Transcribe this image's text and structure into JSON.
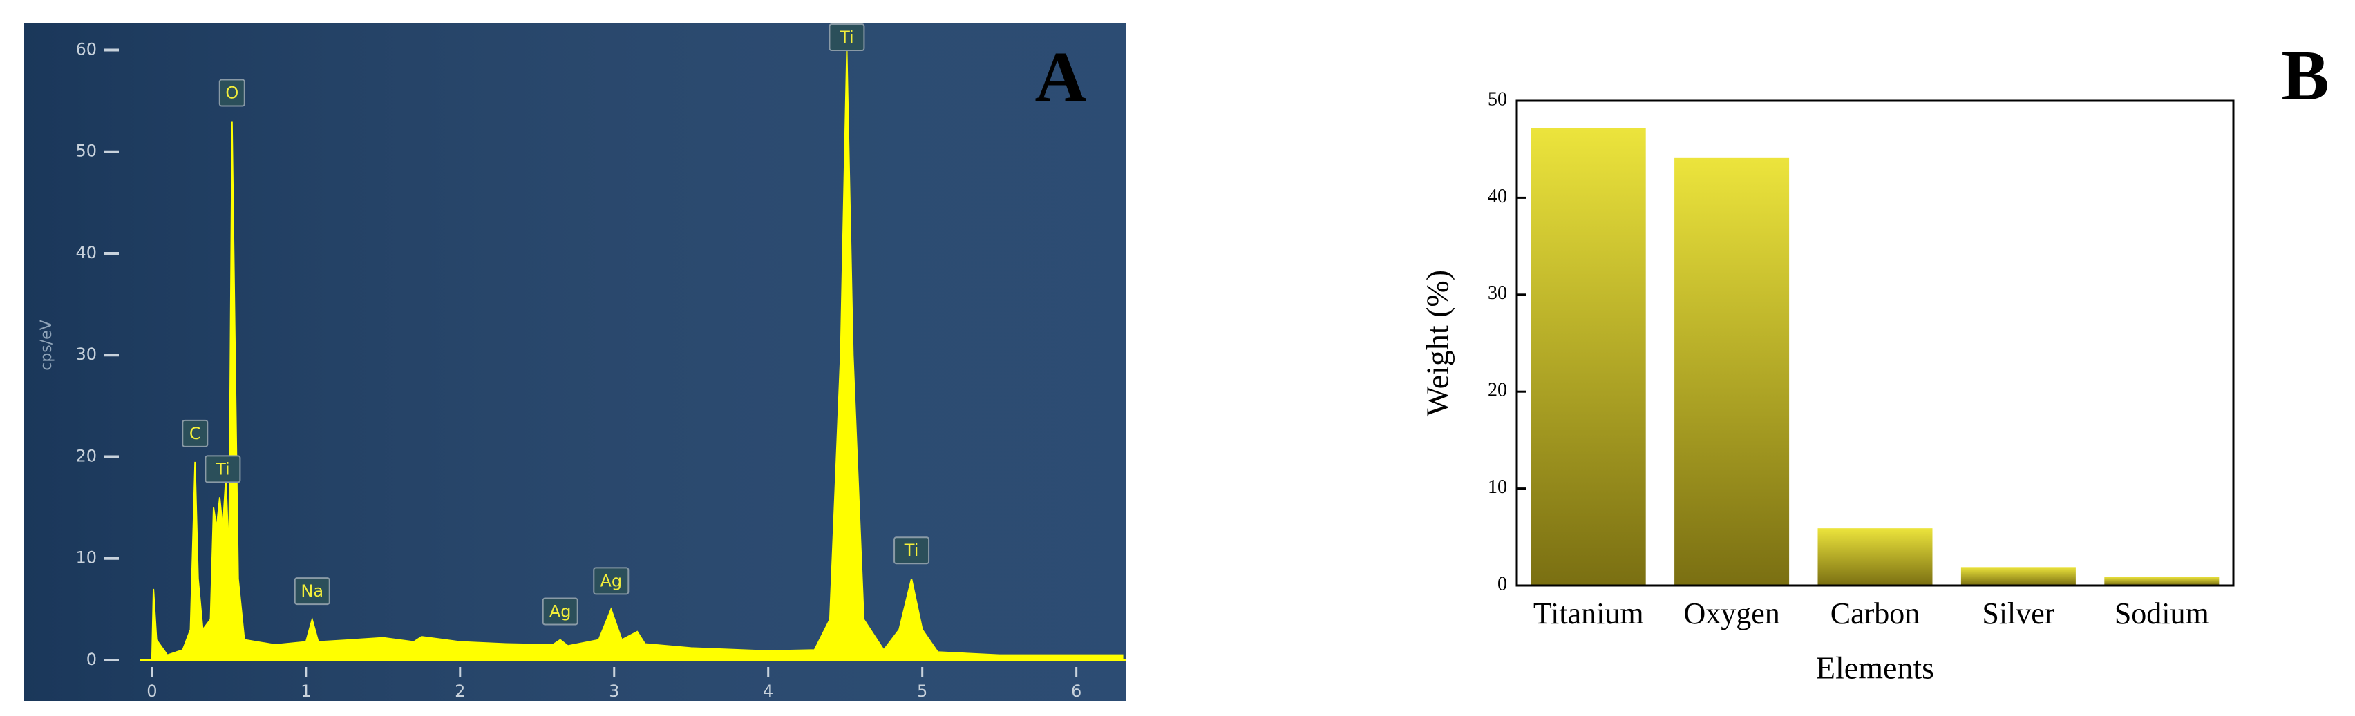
{
  "chart_data": [
    {
      "type": "area",
      "panel": "A",
      "y_label": "cps/eV",
      "color": "#ffff00",
      "background": "#1f416a",
      "x": [
        0,
        0.01,
        0.03,
        0.1,
        0.2,
        0.25,
        0.28,
        0.3,
        0.33,
        0.38,
        0.4,
        0.42,
        0.44,
        0.46,
        0.48,
        0.5,
        0.52,
        0.54,
        0.56,
        0.6,
        0.8,
        1.0,
        1.04,
        1.08,
        1.3,
        1.5,
        1.7,
        1.75,
        2.0,
        2.3,
        2.6,
        2.65,
        2.7,
        2.9,
        2.98,
        3.05,
        3.15,
        3.2,
        3.5,
        4.0,
        4.3,
        4.4,
        4.47,
        4.51,
        4.55,
        4.62,
        4.75,
        4.85,
        4.93,
        5.0,
        5.1,
        5.5,
        6.3
      ],
      "values": [
        0,
        7,
        2,
        0.5,
        1,
        3,
        19.5,
        8,
        3,
        4,
        15,
        13,
        16,
        13,
        18,
        10,
        53,
        30,
        8,
        2,
        1.5,
        1.8,
        4,
        1.8,
        2,
        2.2,
        1.8,
        2.3,
        1.8,
        1.6,
        1.5,
        2,
        1.4,
        2,
        5,
        2,
        2.8,
        1.6,
        1.2,
        0.9,
        1,
        4,
        30,
        60,
        30,
        4,
        1,
        3,
        8,
        3,
        0.8,
        0.5,
        0.5
      ],
      "xlim": [
        -0.08,
        6.32
      ],
      "ylim": [
        0,
        62
      ],
      "xticks": [
        0,
        1,
        2,
        3,
        4,
        5,
        6
      ],
      "yticks": [
        0,
        10,
        20,
        30,
        40,
        50,
        60
      ],
      "annotations": [
        {
          "text": "C",
          "x": 0.28,
          "y": 19.5
        },
        {
          "text": "Ti",
          "x": 0.46,
          "y": 16
        },
        {
          "text": "O",
          "x": 0.52,
          "y": 53
        },
        {
          "text": "Na",
          "x": 1.04,
          "y": 4
        },
        {
          "text": "Ag",
          "x": 2.65,
          "y": 2
        },
        {
          "text": "Ag",
          "x": 2.98,
          "y": 5
        },
        {
          "text": "Ti",
          "x": 4.51,
          "y": 60
        },
        {
          "text": "Ti",
          "x": 4.93,
          "y": 8
        }
      ]
    },
    {
      "type": "bar",
      "panel": "B",
      "x_label": "Elements",
      "y_label": "Weight (%)",
      "color": "#ece43c",
      "categories": [
        "Titanium",
        "Oxygen",
        "Carbon",
        "Silver",
        "Sodium"
      ],
      "values": [
        47.2,
        44.1,
        5.9,
        1.9,
        0.9
      ],
      "ylim": [
        0,
        50
      ],
      "yticks": [
        0,
        10,
        20,
        30,
        40,
        50
      ]
    }
  ]
}
